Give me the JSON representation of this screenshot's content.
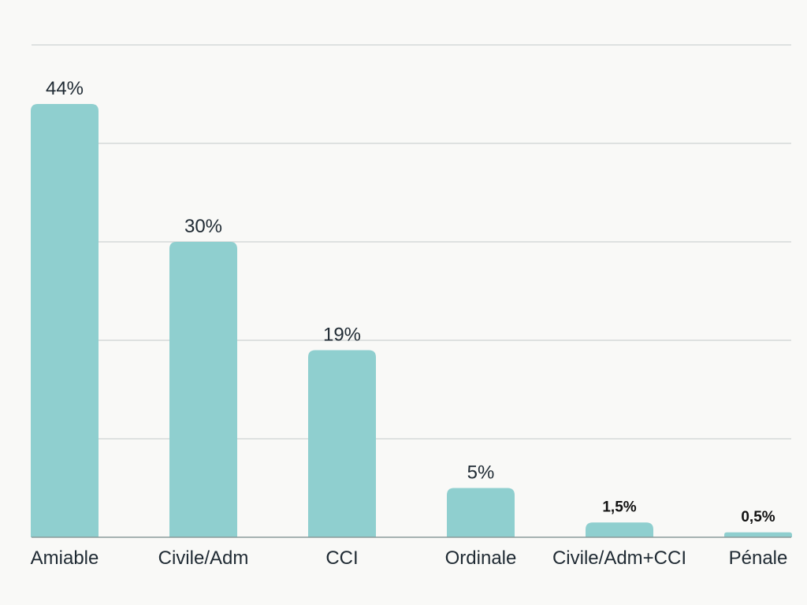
{
  "chart_data": {
    "type": "bar",
    "categories": [
      "Amiable",
      "Civile/Adm",
      "CCI",
      "Ordinale",
      "Civile/Adm+CCI",
      "Pénale"
    ],
    "values": [
      44,
      30,
      19,
      5,
      1.5,
      0.5
    ],
    "value_labels": [
      "44%",
      "30%",
      "19%",
      "5%",
      "1,5%",
      "0,5%"
    ],
    "title": "",
    "xlabel": "",
    "ylabel": "",
    "ylim": [
      0,
      50
    ],
    "grid": true,
    "bar_color": "#8fcfcf",
    "grid_color": "#cfd3d3",
    "text_color": "#1f2a33",
    "background_color": "#f9f9f7"
  }
}
